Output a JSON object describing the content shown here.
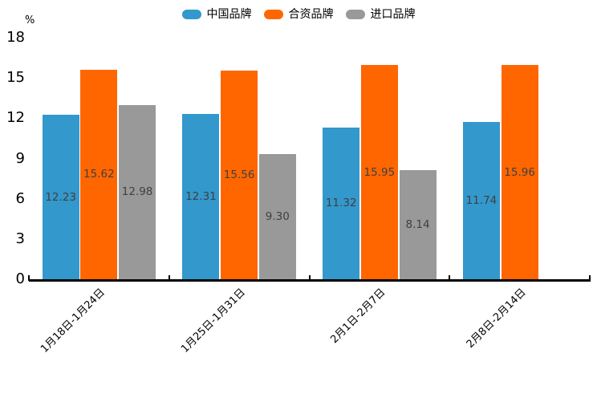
{
  "chart_data": {
    "type": "bar",
    "title": "",
    "unit_label": "%",
    "categories": [
      "1月18日-1月24日",
      "1月25日-1月31日",
      "2月1日-2月7日",
      "2月8日-2月14日"
    ],
    "series": [
      {
        "name": "中国品牌",
        "color": "#3398CC",
        "values": [
          12.23,
          12.31,
          11.32,
          11.74
        ]
      },
      {
        "name": "合资品牌",
        "color": "#FF6600",
        "values": [
          15.62,
          15.56,
          15.95,
          15.96
        ]
      },
      {
        "name": "进口品牌",
        "color": "#999999",
        "values": [
          12.98,
          9.3,
          8.14,
          null
        ]
      }
    ],
    "ylim": [
      0,
      18
    ],
    "yticks": [
      0,
      3,
      6,
      9,
      12,
      15,
      18
    ],
    "xlabel": "",
    "ylabel": "%",
    "legend_position": "top-center",
    "grid": false,
    "x_tick_rotation_deg": 45,
    "value_label_decimals": 2,
    "value_label_color": "#404040",
    "axis_color": "#000000"
  }
}
